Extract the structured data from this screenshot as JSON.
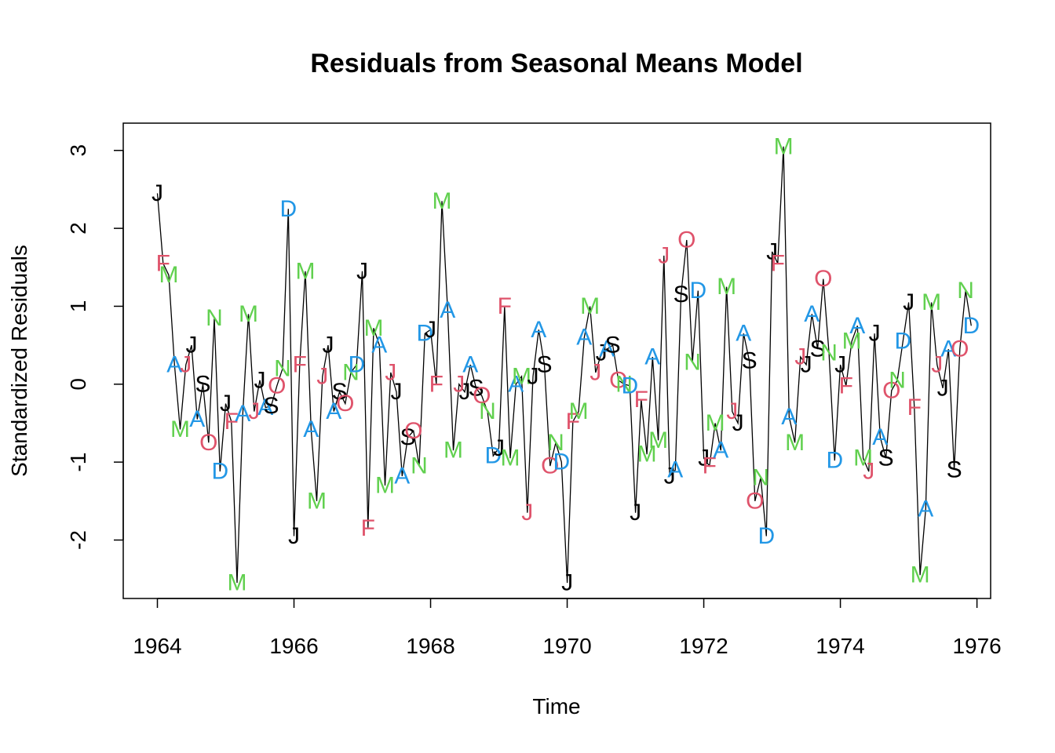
{
  "chart_data": {
    "type": "line",
    "title": "Residuals from Seasonal Means Model",
    "xlabel": "Time",
    "ylabel": "Standardized Residuals",
    "xlim": [
      1963.5,
      1976.2
    ],
    "ylim": [
      -2.75,
      3.35
    ],
    "x_ticks": [
      1964,
      1966,
      1968,
      1970,
      1972,
      1974,
      1976
    ],
    "y_ticks": [
      -2,
      -1,
      0,
      1,
      2,
      3
    ],
    "x_start": 1964,
    "frequency": 12,
    "grid": false,
    "legend": "none",
    "month_letters": [
      "J",
      "F",
      "M",
      "A",
      "M",
      "J",
      "J",
      "A",
      "S",
      "O",
      "N",
      "D"
    ],
    "month_colors": [
      "#000000",
      "#DF536B",
      "#61D04F",
      "#2297E6",
      "#61D04F",
      "#DF536B",
      "#000000",
      "#2297E6",
      "#000000",
      "#DF536B",
      "#61D04F",
      "#2297E6"
    ],
    "line_color": "#000000",
    "values": [
      2.45,
      1.55,
      1.4,
      0.25,
      -0.58,
      0.25,
      0.5,
      -0.45,
      0.0,
      -0.75,
      0.85,
      -1.12,
      -0.25,
      -0.48,
      -2.55,
      -0.38,
      0.9,
      -0.35,
      0.05,
      -0.3,
      -0.28,
      -0.02,
      0.2,
      2.25,
      -1.95,
      0.25,
      1.45,
      -0.58,
      -1.5,
      0.1,
      0.5,
      -0.35,
      -0.1,
      -0.25,
      0.15,
      0.25,
      1.45,
      -1.85,
      0.72,
      0.5,
      -1.3,
      0.15,
      -0.1,
      -1.18,
      -0.68,
      -0.6,
      -1.05,
      0.65,
      0.7,
      0.0,
      2.35,
      0.95,
      -0.85,
      0.0,
      -0.1,
      0.25,
      -0.05,
      -0.15,
      -0.35,
      -0.92,
      -0.82,
      1.0,
      -0.95,
      0.0,
      0.1,
      -1.65,
      0.1,
      0.7,
      0.25,
      -1.05,
      -0.75,
      -1.0,
      -2.55,
      -0.48,
      -0.35,
      0.6,
      1.0,
      0.15,
      0.4,
      0.45,
      0.5,
      0.05,
      0.0,
      -0.02,
      -1.65,
      -0.2,
      -0.9,
      0.35,
      -0.72,
      1.65,
      -1.18,
      -1.1,
      1.15,
      1.85,
      0.28,
      1.2,
      -0.95,
      -1.05,
      -0.5,
      -0.85,
      1.25,
      -0.35,
      -0.5,
      0.65,
      0.3,
      -1.5,
      -1.2,
      -1.95,
      1.7,
      1.55,
      3.05,
      -0.42,
      -0.75,
      0.35,
      0.25,
      0.9,
      0.45,
      1.35,
      0.4,
      -0.98,
      0.25,
      -0.02,
      0.55,
      0.75,
      -0.95,
      -1.12,
      0.65,
      -0.68,
      -0.95,
      -0.08,
      0.05,
      0.55,
      1.05,
      -0.3,
      -2.45,
      -1.6,
      1.05,
      0.25,
      -0.05,
      0.45,
      -1.1,
      0.45,
      1.2,
      0.75
    ]
  }
}
